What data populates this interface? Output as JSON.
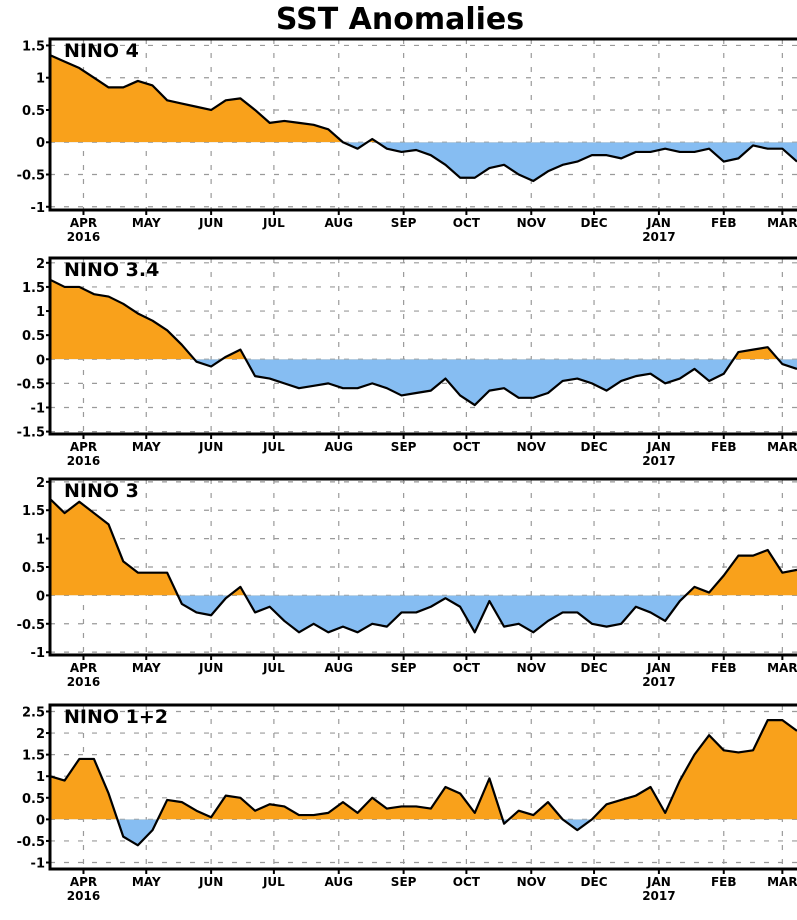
{
  "title": "SST Anomalies",
  "colors": {
    "positive": "#F9A11B",
    "negative": "#86BDF2",
    "line": "#000000",
    "grid": "#9a9a9a"
  },
  "chart_data": [
    {
      "type": "area",
      "label": "NINO 4",
      "ylim": [
        -1.05,
        1.6
      ],
      "yticks": [
        "1.5",
        "1",
        "0.5",
        "0",
        "-0.5",
        "-1"
      ],
      "grid": true,
      "x": [
        "2016-03-16",
        "2016-03-23",
        "2016-03-30",
        "2016-04-06",
        "2016-04-13",
        "2016-04-20",
        "2016-04-27",
        "2016-05-04",
        "2016-05-11",
        "2016-05-18",
        "2016-05-25",
        "2016-06-01",
        "2016-06-08",
        "2016-06-15",
        "2016-06-22",
        "2016-06-29",
        "2016-07-06",
        "2016-07-13",
        "2016-07-20",
        "2016-07-27",
        "2016-08-03",
        "2016-08-10",
        "2016-08-17",
        "2016-08-24",
        "2016-08-31",
        "2016-09-07",
        "2016-09-14",
        "2016-09-21",
        "2016-09-28",
        "2016-10-05",
        "2016-10-12",
        "2016-10-19",
        "2016-10-26",
        "2016-11-02",
        "2016-11-09",
        "2016-11-16",
        "2016-11-23",
        "2016-11-30",
        "2016-12-07",
        "2016-12-14",
        "2016-12-21",
        "2016-12-28",
        "2017-01-04",
        "2017-01-11",
        "2017-01-18",
        "2017-01-25",
        "2017-02-01",
        "2017-02-08",
        "2017-02-15",
        "2017-02-22",
        "2017-03-01",
        "2017-03-08"
      ],
      "values": [
        1.35,
        1.25,
        1.15,
        1.0,
        0.85,
        0.85,
        0.95,
        0.88,
        0.65,
        0.6,
        0.55,
        0.5,
        0.65,
        0.68,
        0.5,
        0.3,
        0.33,
        0.3,
        0.27,
        0.2,
        0.0,
        -0.1,
        0.05,
        -0.1,
        -0.15,
        -0.12,
        -0.2,
        -0.35,
        -0.55,
        -0.55,
        -0.4,
        -0.35,
        -0.5,
        -0.6,
        -0.45,
        -0.35,
        -0.3,
        -0.2,
        -0.2,
        -0.25,
        -0.15,
        -0.15,
        -0.1,
        -0.15,
        -0.15,
        -0.1,
        -0.3,
        -0.25,
        -0.05,
        -0.1,
        -0.1,
        -0.3
      ]
    },
    {
      "type": "area",
      "label": "NINO 3.4",
      "ylim": [
        -1.55,
        2.1
      ],
      "yticks": [
        "2",
        "1.5",
        "1",
        "0.5",
        "0",
        "-0.5",
        "-1",
        "-1.5"
      ],
      "grid": true,
      "values": [
        1.65,
        1.5,
        1.5,
        1.35,
        1.3,
        1.15,
        0.95,
        0.8,
        0.6,
        0.3,
        -0.05,
        -0.15,
        0.05,
        0.2,
        -0.35,
        -0.4,
        -0.5,
        -0.6,
        -0.55,
        -0.5,
        -0.6,
        -0.6,
        -0.5,
        -0.6,
        -0.75,
        -0.7,
        -0.65,
        -0.4,
        -0.75,
        -0.95,
        -0.65,
        -0.6,
        -0.8,
        -0.8,
        -0.7,
        -0.45,
        -0.4,
        -0.5,
        -0.65,
        -0.45,
        -0.35,
        -0.3,
        -0.5,
        -0.4,
        -0.2,
        -0.45,
        -0.3,
        0.15,
        0.2,
        0.25,
        -0.1,
        -0.2
      ]
    },
    {
      "type": "area",
      "label": "NINO 3",
      "ylim": [
        -1.05,
        2.05
      ],
      "yticks": [
        "2",
        "1.5",
        "1",
        "0.5",
        "0",
        "-0.5",
        "-1"
      ],
      "grid": true,
      "values": [
        1.7,
        1.45,
        1.65,
        1.45,
        1.25,
        0.6,
        0.4,
        0.4,
        0.4,
        -0.15,
        -0.3,
        -0.35,
        -0.05,
        0.15,
        -0.3,
        -0.2,
        -0.45,
        -0.65,
        -0.5,
        -0.65,
        -0.55,
        -0.65,
        -0.5,
        -0.55,
        -0.3,
        -0.3,
        -0.2,
        -0.05,
        -0.2,
        -0.65,
        -0.1,
        -0.55,
        -0.5,
        -0.65,
        -0.45,
        -0.3,
        -0.3,
        -0.5,
        -0.55,
        -0.5,
        -0.2,
        -0.3,
        -0.45,
        -0.1,
        0.15,
        0.05,
        0.35,
        0.7,
        0.7,
        0.8,
        0.4,
        0.45
      ]
    },
    {
      "type": "area",
      "label": "NINO 1+2",
      "ylim": [
        -1.15,
        2.65
      ],
      "yticks": [
        "2.5",
        "2",
        "1.5",
        "1",
        "0.5",
        "0",
        "-0.5",
        "-1"
      ],
      "grid": true,
      "values": [
        1.0,
        0.9,
        1.4,
        1.4,
        0.6,
        -0.4,
        -0.6,
        -0.25,
        0.45,
        0.4,
        0.2,
        0.05,
        0.55,
        0.5,
        0.2,
        0.35,
        0.3,
        0.1,
        0.1,
        0.15,
        0.4,
        0.15,
        0.5,
        0.25,
        0.3,
        0.3,
        0.25,
        0.75,
        0.6,
        0.15,
        0.95,
        -0.1,
        0.2,
        0.1,
        0.4,
        0.0,
        -0.25,
        0.0,
        0.35,
        0.45,
        0.55,
        0.75,
        0.15,
        0.9,
        1.5,
        1.95,
        1.6,
        1.55,
        1.6,
        2.3,
        2.3,
        2.05
      ]
    }
  ],
  "xaxis": {
    "months": [
      {
        "label": "APR",
        "date": "2016-04-01",
        "year": "2016"
      },
      {
        "label": "MAY",
        "date": "2016-05-01"
      },
      {
        "label": "JUN",
        "date": "2016-06-01"
      },
      {
        "label": "JUL",
        "date": "2016-07-01"
      },
      {
        "label": "AUG",
        "date": "2016-08-01"
      },
      {
        "label": "SEP",
        "date": "2016-09-01"
      },
      {
        "label": "OCT",
        "date": "2016-10-01"
      },
      {
        "label": "NOV",
        "date": "2016-11-01"
      },
      {
        "label": "DEC",
        "date": "2016-12-01"
      },
      {
        "label": "JAN",
        "date": "2017-01-01",
        "year": "2017"
      },
      {
        "label": "FEB",
        "date": "2017-02-01"
      },
      {
        "label": "MAR",
        "date": "2017-03-01"
      }
    ]
  }
}
